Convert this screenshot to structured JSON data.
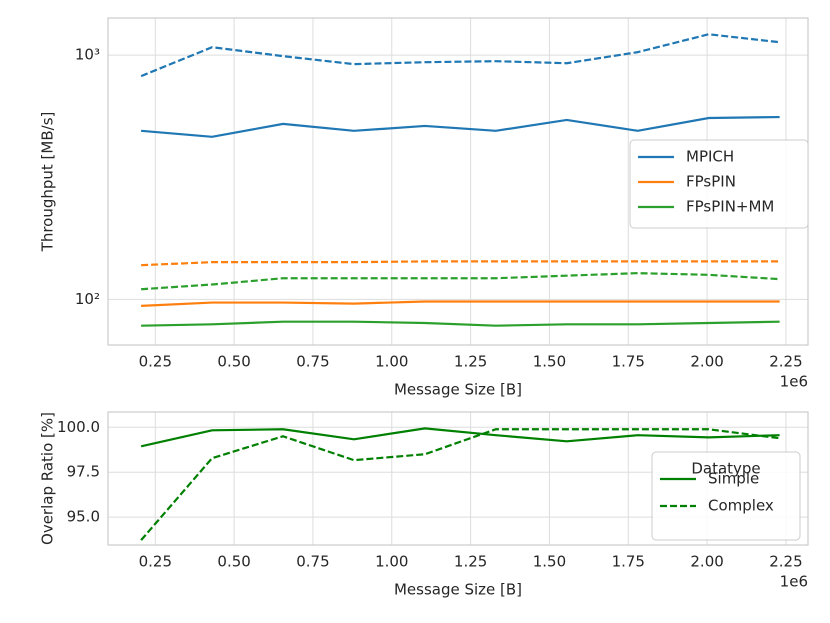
{
  "chart_data": [
    {
      "type": "line",
      "ylabel": "Throughput [MB/s]",
      "xlabel": "Message Size [B]",
      "x_offset_label": "1e6",
      "log_y": true,
      "grid": true,
      "legend_position": "right",
      "xlim": [
        0.1,
        2.32
      ],
      "ylim": [
        65,
        1420
      ],
      "xticks": [
        {
          "value": 0.25,
          "label": "0.25"
        },
        {
          "value": 0.5,
          "label": "0.50"
        },
        {
          "value": 0.75,
          "label": "0.75"
        },
        {
          "value": 1.0,
          "label": "1.00"
        },
        {
          "value": 1.25,
          "label": "1.25"
        },
        {
          "value": 1.5,
          "label": "1.50"
        },
        {
          "value": 1.75,
          "label": "1.75"
        },
        {
          "value": 2.0,
          "label": "2.00"
        },
        {
          "value": 2.25,
          "label": "2.25"
        }
      ],
      "yticks": [
        {
          "value": 100,
          "label": "10²"
        },
        {
          "value": 1000,
          "label": "10³"
        }
      ],
      "x": [
        0.205,
        0.43,
        0.655,
        0.88,
        1.105,
        1.33,
        1.555,
        1.78,
        2.005,
        2.23
      ],
      "series": [
        {
          "name": "MPICH",
          "color": "#1f77b4",
          "values": [
            490,
            463,
            523,
            490,
            513,
            490,
            543,
            490,
            553,
            558
          ],
          "complex_values": [
            821,
            1078,
            991,
            919,
            936,
            945,
            927,
            1029,
            1218,
            1130
          ]
        },
        {
          "name": "FPsPIN",
          "color": "#ff7f0e",
          "values": [
            94,
            97,
            97,
            96,
            98,
            98,
            98,
            98,
            98,
            98
          ],
          "complex_values": [
            138,
            142,
            142,
            142,
            143,
            143,
            143,
            143,
            143,
            143
          ]
        },
        {
          "name": "FPsPIN+MM",
          "color": "#2ca02c",
          "values": [
            78,
            79,
            81,
            81,
            80,
            78,
            79,
            79,
            80,
            81
          ],
          "complex_values": [
            110,
            115,
            122,
            122,
            122,
            122,
            125,
            128,
            126,
            121
          ]
        }
      ]
    },
    {
      "type": "line",
      "ylabel": "Overlap Ratio [%]",
      "xlabel": "Message Size [B]",
      "x_offset_label": "1e6",
      "log_y": false,
      "grid": true,
      "legend_position": "right",
      "legend_title": "Datatype",
      "xlim": [
        0.1,
        2.32
      ],
      "ylim": [
        93.45,
        100.85
      ],
      "xticks": [
        {
          "value": 0.25,
          "label": "0.25"
        },
        {
          "value": 0.5,
          "label": "0.50"
        },
        {
          "value": 0.75,
          "label": "0.75"
        },
        {
          "value": 1.0,
          "label": "1.00"
        },
        {
          "value": 1.25,
          "label": "1.25"
        },
        {
          "value": 1.5,
          "label": "1.50"
        },
        {
          "value": 1.75,
          "label": "1.75"
        },
        {
          "value": 2.0,
          "label": "2.00"
        },
        {
          "value": 2.25,
          "label": "2.25"
        }
      ],
      "yticks": [
        {
          "value": 95,
          "label": "95.0"
        },
        97.5,
        {
          "value": 100,
          "label": "100.0"
        }
      ],
      "x": [
        0.205,
        0.43,
        0.655,
        0.88,
        1.105,
        1.33,
        1.555,
        1.78,
        2.005,
        2.23
      ],
      "series": [
        {
          "name": "Simple",
          "color": "#008000",
          "dashed": false,
          "values": [
            98.94,
            99.83,
            99.89,
            99.33,
            99.94,
            99.56,
            99.22,
            99.56,
            99.44,
            99.56
          ]
        },
        {
          "name": "Complex",
          "color": "#008000",
          "dashed": true,
          "values": [
            93.72,
            98.28,
            99.5,
            98.17,
            98.5,
            99.89,
            99.89,
            99.89,
            99.89,
            99.39
          ]
        }
      ]
    }
  ]
}
